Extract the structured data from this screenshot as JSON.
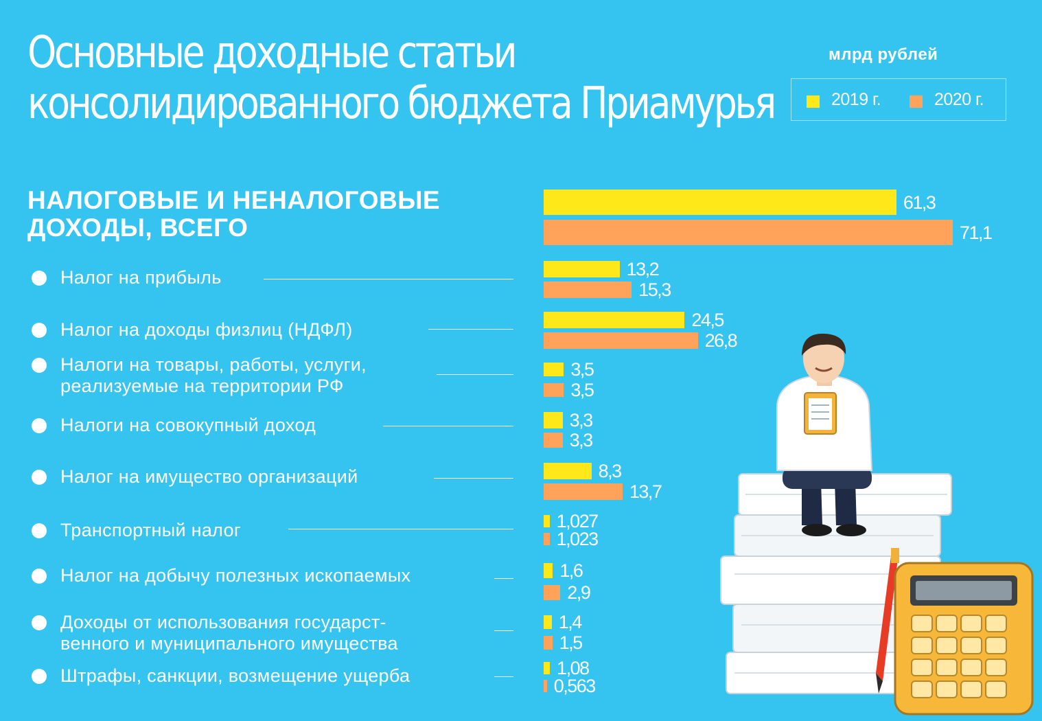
{
  "title": "Основные доходные статьи\nконсолидированного бюджета Приамурья",
  "unit": "млрд рублей",
  "legend": {
    "y2019": "2019 г.",
    "y2020": "2020 г."
  },
  "colors": {
    "background": "#35c3ef",
    "y2019": "#ffe81a",
    "y2020": "#ffa35a",
    "text": "#ffffff"
  },
  "chart_data": {
    "type": "bar",
    "orientation": "horizontal",
    "unit": "млрд рублей",
    "series": [
      {
        "name": "2019 г.",
        "values": [
          61.3,
          13.2,
          24.5,
          3.5,
          3.3,
          8.3,
          1.027,
          1.6,
          1.4,
          1.08
        ]
      },
      {
        "name": "2020 г.",
        "values": [
          71.1,
          15.3,
          26.8,
          3.5,
          3.3,
          13.7,
          1.023,
          2.9,
          1.5,
          0.563
        ]
      }
    ],
    "categories": [
      "НАЛОГОВЫЕ И НЕНАЛОГОВЫЕ\nДОХОДЫ, ВСЕГО",
      "Налог на прибыль",
      "Налог на доходы физлиц (НДФЛ)",
      "Налоги на товары, работы, услуги,\nреализуемые на территории РФ",
      "Налоги на совокупный доход",
      "Налог на имущество организаций",
      "Транспортный налог",
      "Налог на добычу полезных ископаемых",
      "Доходы от использования государст-\nвенного и муниципального имущества",
      "Штрафы, санкции, возмещение ущерба"
    ],
    "value_labels_2019": [
      "61,3",
      "13,2",
      "24,5",
      "3,5",
      "3,3",
      "8,3",
      "1,027",
      "1,6",
      "1,4",
      "1,08"
    ],
    "value_labels_2020": [
      "71,1",
      "15,3",
      "26,8",
      "3,5",
      "3,3",
      "13,7",
      "1,023",
      "2,9",
      "1,5",
      "0,563"
    ],
    "xlim": [
      0,
      71.1
    ],
    "grid": false,
    "legend_position": "top-right"
  }
}
